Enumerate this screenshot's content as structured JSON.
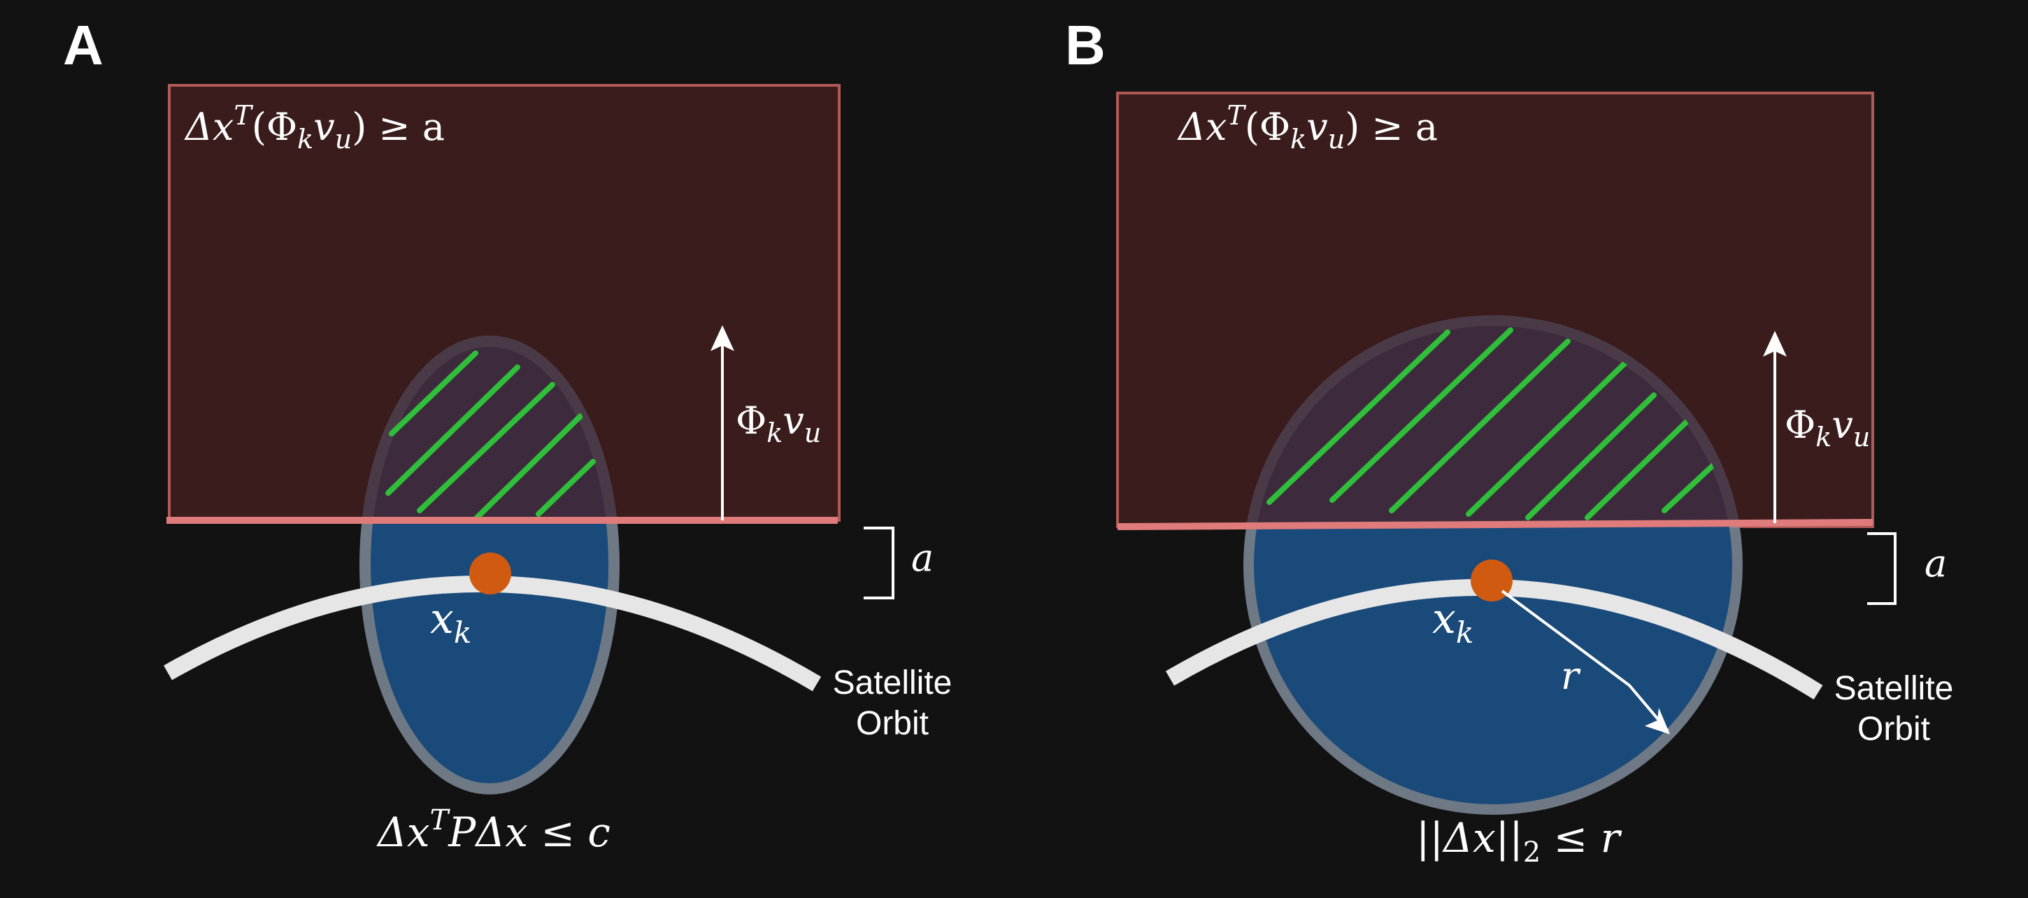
{
  "panels": [
    {
      "letter": "A",
      "constraint_lhs": "Δx",
      "constraint_sup": "T",
      "constraint_rhs": "(Φ",
      "constraint_sub_k": "k",
      "constraint_v": "v",
      "constraint_sub_u": "u",
      "constraint_tail": ") ≥ a",
      "vector_label": "Φ",
      "vector_sub_k": "k",
      "vector_v": "v",
      "vector_sub_u": "u",
      "offset_label": "a",
      "point_label": "x",
      "point_sub": "k",
      "orbit_label_line1": "Satellite",
      "orbit_label_line2": "Orbit",
      "region_label_a": "Δx",
      "region_label_sup": "T",
      "region_label_b": "PΔx ≤ c"
    },
    {
      "letter": "B",
      "constraint_lhs": "Δx",
      "constraint_sup": "T",
      "constraint_rhs": "(Φ",
      "constraint_sub_k": "k",
      "constraint_v": "v",
      "constraint_sub_u": "u",
      "constraint_tail": ") ≥ a",
      "vector_label": "Φ",
      "vector_sub_k": "k",
      "vector_v": "v",
      "vector_sub_u": "u",
      "offset_label": "a",
      "point_label": "x",
      "point_sub": "k",
      "radius_label": "r",
      "orbit_label_line1": "Satellite",
      "orbit_label_line2": "Orbit",
      "region_label_a": "||Δx||",
      "region_label_sub": "2",
      "region_label_b": " ≤ r"
    }
  ],
  "colors": {
    "background": "#121212",
    "halfspace_fill": "#3a1c1c",
    "halfspace_border": "#b05a58",
    "boundary_line": "#e07b7b",
    "uncertainty_fill": "#1a4a7a",
    "uncertainty_ring": "#8a9aab",
    "hatch": "#2fbf3a",
    "overlap_fill": "#3d2a3c",
    "orbit": "#e6e6e6",
    "point": "#d05a10",
    "arrow": "#ffffff"
  }
}
